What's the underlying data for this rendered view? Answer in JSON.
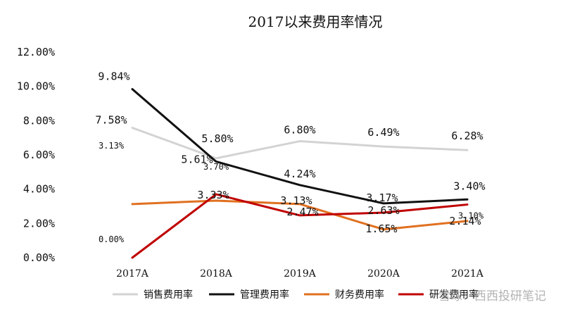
{
  "chart_data": {
    "type": "line",
    "title": "2017以来费用率情况",
    "categories": [
      "2017A",
      "2018A",
      "2019A",
      "2020A",
      "2021A"
    ],
    "ylim": [
      0,
      12
    ],
    "yticks": [
      "0.00%",
      "2.00%",
      "4.00%",
      "6.00%",
      "8.00%",
      "10.00%",
      "12.00%"
    ],
    "grid": false,
    "legend_position": "bottom",
    "series": [
      {
        "name": "销售费用率",
        "color": "#d3d3d3",
        "values": [
          7.58,
          5.8,
          6.8,
          6.49,
          6.28
        ],
        "labels": [
          "7.58%",
          "5.80%",
          "6.80%",
          "6.49%",
          "6.28%"
        ]
      },
      {
        "name": "管理费用率",
        "color": "#111111",
        "values": [
          9.84,
          5.61,
          4.24,
          3.17,
          3.4
        ],
        "labels": [
          "9.84%",
          "5.61%",
          "4.24%",
          "3.17%",
          "3.40%"
        ]
      },
      {
        "name": "财务费用率",
        "color": "#e07020",
        "values": [
          3.13,
          3.33,
          3.13,
          1.65,
          2.14
        ],
        "labels": [
          "3.13%",
          "3.33%",
          "3.13%",
          "1.65%",
          "2.14%"
        ]
      },
      {
        "name": "研发费用率",
        "color": "#c00000",
        "values": [
          0.0,
          3.7,
          2.47,
          2.63,
          3.1
        ],
        "labels": [
          "0.00%",
          "3.70%",
          "2.47%",
          "2.63%",
          "3.10%"
        ]
      }
    ]
  },
  "watermark": "雪球：西西投研笔记"
}
